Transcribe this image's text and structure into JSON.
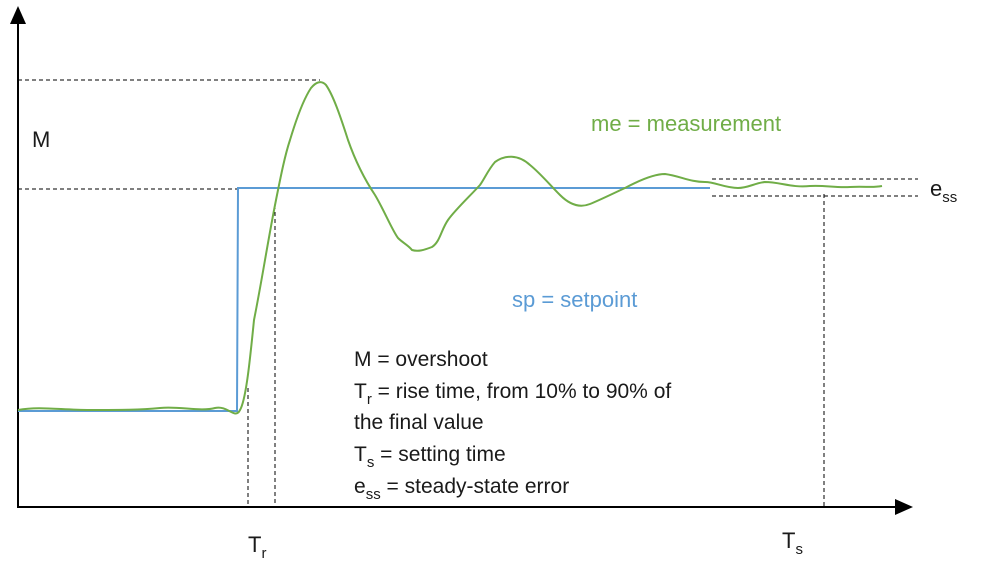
{
  "labels": {
    "M": "M",
    "ess_main": "e",
    "ess_sub": "ss",
    "tr_main": "T",
    "tr_sub": "r",
    "ts_main": "T",
    "ts_sub": "s",
    "measurement": "me = measurement",
    "setpoint": "sp = setpoint"
  },
  "legend": {
    "overshoot": "M = overshoot",
    "rise_main": "T",
    "rise_sub": "r",
    "rise_text": " = rise time, from 10% to 90% of",
    "rise_text2": "the final value",
    "settle_main": "T",
    "settle_sub": "s",
    "settle_text": " = setting time",
    "ess_main": "e",
    "ess_sub": "ss",
    "ess_text": " = steady-state error"
  },
  "colors": {
    "measurement": "#70ad47",
    "setpoint": "#5b9bd5",
    "axis": "#000000"
  }
}
